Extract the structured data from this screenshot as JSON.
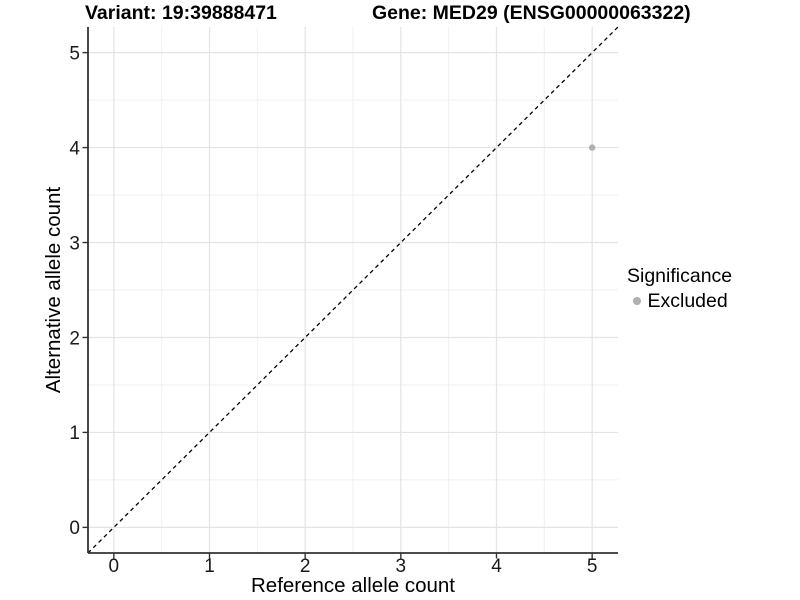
{
  "header": {
    "variant_title": "Variant: 19:39888471",
    "gene_title": "Gene: MED29 (ENSG00000063322)"
  },
  "chart_data": {
    "type": "scatter",
    "title_left": "Variant: 19:39888471",
    "title_right": "Gene: MED29 (ENSG00000063322)",
    "xlabel": "Reference allele count",
    "ylabel": "Alternative allele count",
    "xlim": [
      -0.27,
      5.27
    ],
    "ylim": [
      -0.27,
      5.27
    ],
    "x_ticks": [
      0,
      1,
      2,
      3,
      4,
      5
    ],
    "y_ticks": [
      0,
      1,
      2,
      3,
      4,
      5
    ],
    "minor_grid_x": [
      0.5,
      1.5,
      2.5,
      3.5,
      4.5
    ],
    "minor_grid_y": [
      0.5,
      1.5,
      2.5,
      3.5,
      4.5
    ],
    "grid": true,
    "series": [
      {
        "name": "Excluded",
        "color": "#b0b0b0",
        "points": [
          {
            "x": 5,
            "y": 4
          }
        ]
      }
    ],
    "reference_line": {
      "kind": "identity",
      "from": [
        -0.27,
        -0.27
      ],
      "to": [
        5.27,
        5.27
      ],
      "style": "dashed",
      "color": "#000000"
    },
    "legend": {
      "title": "Significance",
      "position": "right",
      "entries": [
        {
          "label": "Excluded",
          "color": "#b0b0b0"
        }
      ]
    }
  },
  "colors": {
    "background": "#ffffff",
    "grid_major": "#e4e4e4",
    "grid_minor": "#f1f1f1",
    "axis_line": "#333333",
    "tick_mark": "#333333",
    "tick_label": "#1a1a1a",
    "dashed_line": "#000000",
    "point": "#b0b0b0"
  }
}
